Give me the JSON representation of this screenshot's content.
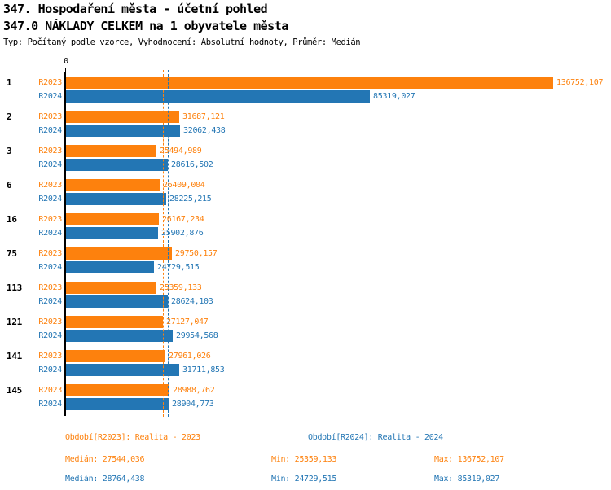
{
  "chart_data": {
    "type": "bar",
    "orientation": "horizontal",
    "title": "347. Hospodaření města - účetní pohled",
    "subtitle": "347.0 NÁKLADY CELKEM na 1 obyvatele města",
    "meta": "Typ: Počítaný podle vzorce, Vyhodnocení: Absolutní hodnoty, Průměr: Medián",
    "value_axis": {
      "min": 0,
      "tick_labels": [
        "0"
      ],
      "grid": false
    },
    "categories": [
      "1",
      "2",
      "3",
      "6",
      "16",
      "75",
      "113",
      "121",
      "141",
      "145"
    ],
    "series": [
      {
        "name": "R2023",
        "color": "#fd810d",
        "values": [
          136752.107,
          31687.121,
          25494.989,
          26409.004,
          26167.234,
          29750.157,
          25359.133,
          27127.047,
          27961.026,
          28988.762
        ],
        "value_labels": [
          "136752,107",
          "31687,121",
          "25494,989",
          "26409,004",
          "26167,234",
          "29750,157",
          "25359,133",
          "27127,047",
          "27961,026",
          "28988,762"
        ],
        "median": 27544.036
      },
      {
        "name": "R2024",
        "color": "#2376b4",
        "values": [
          85319.027,
          32062.438,
          28616.502,
          28225.215,
          25902.876,
          24729.515,
          28624.103,
          29954.568,
          31711.853,
          28904.773
        ],
        "value_labels": [
          "85319,027",
          "32062,438",
          "28616,502",
          "28225,215",
          "25902,876",
          "24729,515",
          "28624,103",
          "29954,568",
          "31711,853",
          "28904,773"
        ],
        "median": 28764.438
      }
    ],
    "legend": {
      "series_labels": [
        {
          "text": "Období[R2023]: Realita - 2023",
          "color": "#fd810d"
        },
        {
          "text": "Období[R2024]: Realita - 2024",
          "color": "#2376b4"
        }
      ],
      "stats": [
        {
          "median": "Medián: 27544,036",
          "min": "Min: 25359,133",
          "max": "Max: 136752,107",
          "color": "#fd810d"
        },
        {
          "median": "Medián: 28764,438",
          "min": "Min: 24729,515",
          "max": "Max: 85319,027",
          "color": "#2376b4"
        }
      ]
    }
  }
}
